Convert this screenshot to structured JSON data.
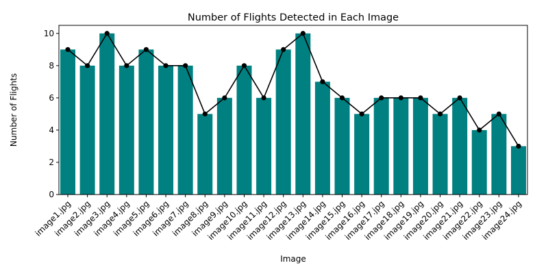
{
  "chart_data": {
    "type": "bar",
    "title": "Number of Flights Detected in Each Image",
    "xlabel": "Image",
    "ylabel": "Number of Flights",
    "categories": [
      "image1.jpg",
      "image2.jpg",
      "image3.jpg",
      "image4.jpg",
      "image5.jpg",
      "image6.jpg",
      "image7.jpg",
      "image8.jpg",
      "image9.jpg",
      "image10.jpg",
      "image11.jpg",
      "image12.jpg",
      "image13.jpg",
      "image14.jpg",
      "image15.jpg",
      "image16.jpg",
      "image17.jpg",
      "image18.jpg",
      "image19.jpg",
      "image20.jpg",
      "image21.jpg",
      "image22.jpg",
      "image23.jpg",
      "image24.jpg"
    ],
    "values": [
      9,
      8,
      10,
      8,
      9,
      8,
      8,
      5,
      6,
      8,
      6,
      9,
      10,
      7,
      6,
      5,
      6,
      6,
      6,
      5,
      6,
      4,
      5,
      3
    ],
    "overlay": "line-with-markers",
    "ylim": [
      0,
      10.5
    ],
    "yticks": [
      0,
      2,
      4,
      6,
      8,
      10
    ],
    "grid": false,
    "legend": "none",
    "colors": {
      "bar": "#008080",
      "line": "#000000"
    }
  }
}
